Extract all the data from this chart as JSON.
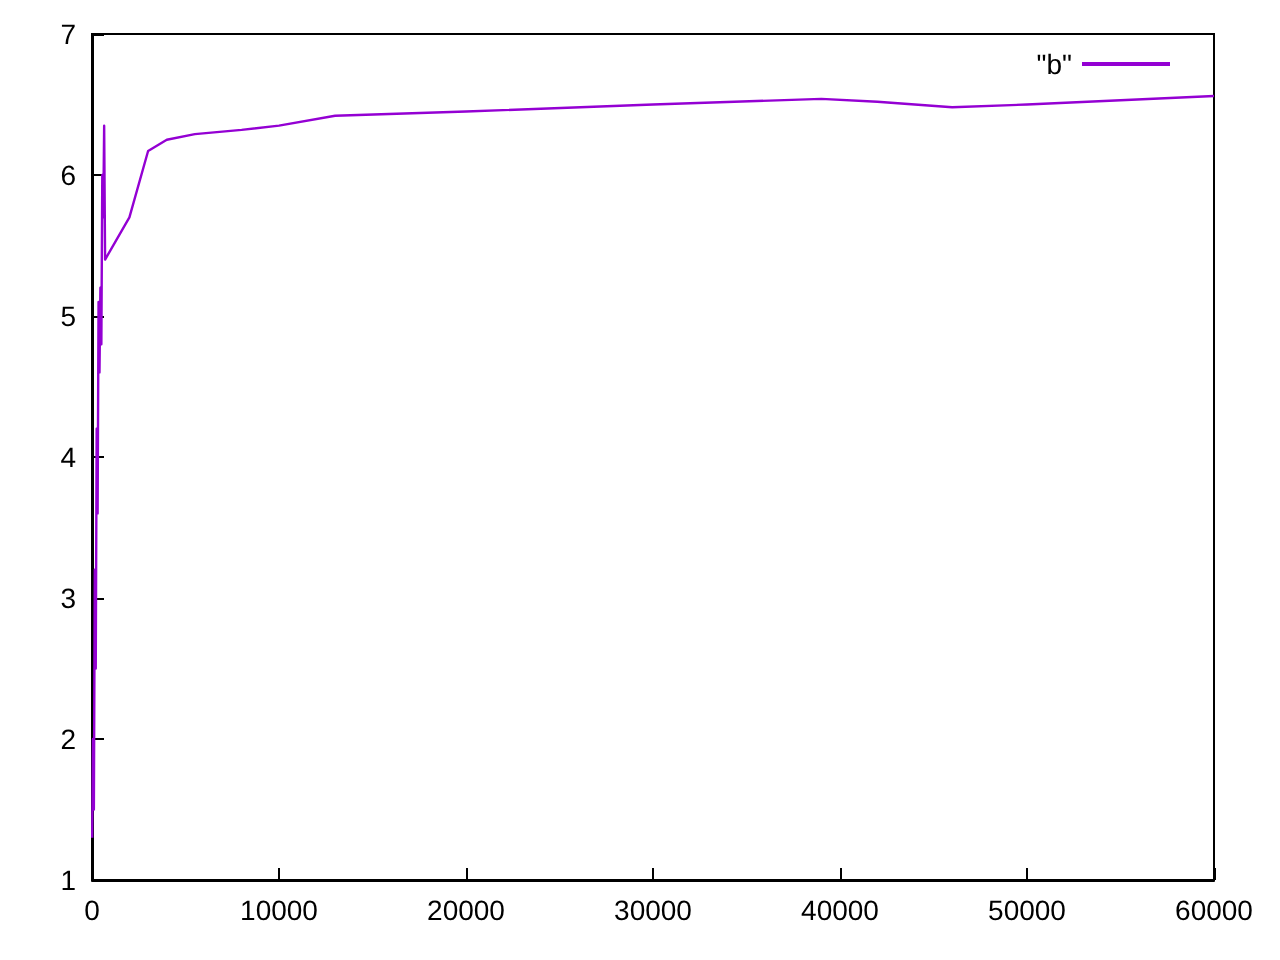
{
  "chart_data": {
    "type": "line",
    "x": [
      10,
      50,
      100,
      150,
      200,
      250,
      300,
      350,
      400,
      450,
      500,
      550,
      600,
      650,
      700,
      2000,
      3000,
      4000,
      5500,
      8000,
      10000,
      13000,
      20000,
      30000,
      39000,
      42000,
      46000,
      50000,
      55000,
      60000
    ],
    "series": [
      {
        "name": "\"b\"",
        "color": "#9400d3",
        "values": [
          1.3,
          2.0,
          1.5,
          3.2,
          2.5,
          4.2,
          3.6,
          5.1,
          4.6,
          5.2,
          4.8,
          6.0,
          5.7,
          6.35,
          5.4,
          5.7,
          6.17,
          6.25,
          6.29,
          6.32,
          6.35,
          6.42,
          6.45,
          6.5,
          6.54,
          6.52,
          6.48,
          6.5,
          6.53,
          6.56
        ]
      }
    ],
    "xlim": [
      0,
      60000
    ],
    "xticks": [
      0,
      10000,
      20000,
      30000,
      40000,
      50000,
      60000
    ],
    "ylim": [
      1,
      7
    ],
    "yticks": [
      1,
      2,
      3,
      4,
      5,
      6,
      7
    ],
    "grid": false,
    "legend": "top right",
    "marker": "none",
    "line_style": "solid"
  }
}
